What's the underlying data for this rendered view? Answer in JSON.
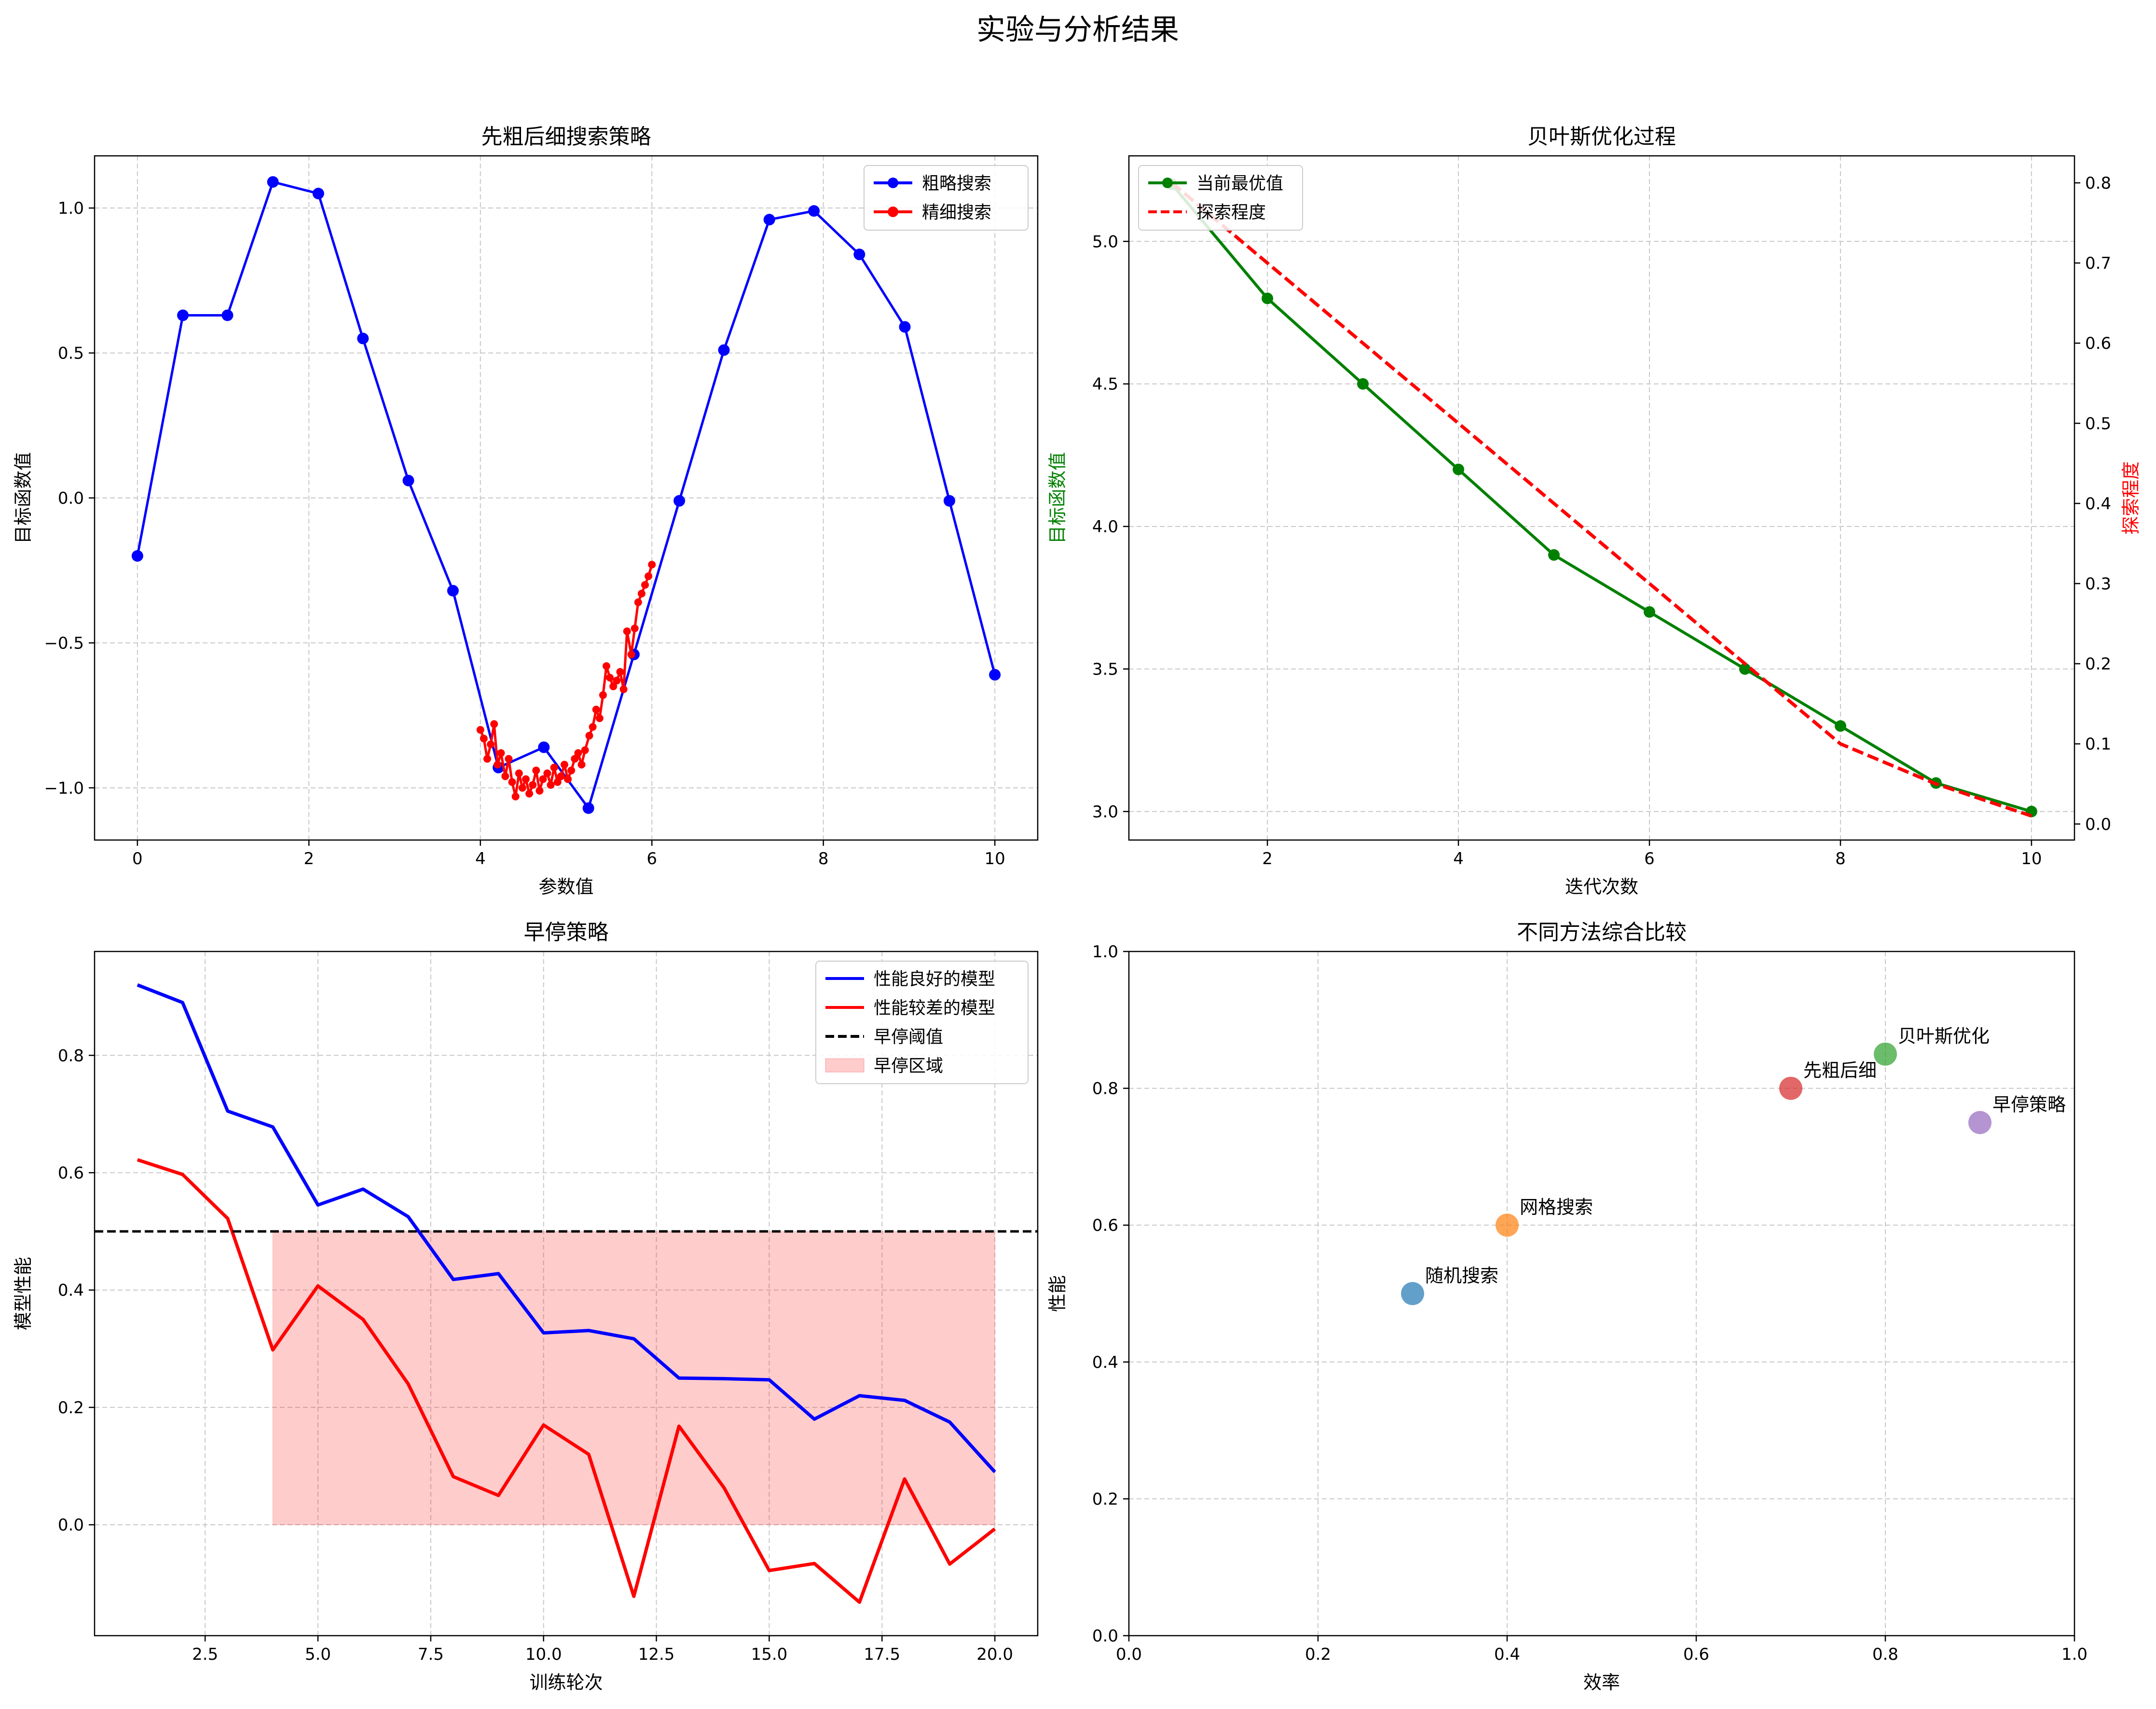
{
  "figure": {
    "title": "实验与分析结果"
  },
  "chart_data": [
    {
      "type": "line",
      "title": "先粗后细搜索策略",
      "xlabel": "参数值",
      "ylabel": "目标函数值",
      "xlim": [
        -0.5,
        10.5
      ],
      "ylim": [
        -1.18,
        1.18
      ],
      "xticks": [
        0,
        2,
        4,
        6,
        8,
        10
      ],
      "xtick_labels": [
        "0",
        "2",
        "4",
        "6",
        "8",
        "10"
      ],
      "yticks": [
        -1.0,
        -0.5,
        0.0,
        0.5,
        1.0
      ],
      "ytick_labels": [
        "−1.0",
        "−0.5",
        "0.0",
        "0.5",
        "1.0"
      ],
      "grid": true,
      "legend_position": "upper right",
      "series": [
        {
          "name": "粗略搜索",
          "color": "#0000ff",
          "marker": "circle",
          "x": [
            0,
            0.53,
            1.05,
            1.58,
            2.11,
            2.63,
            3.16,
            3.68,
            4.21,
            4.74,
            5.26,
            5.79,
            6.32,
            6.84,
            7.37,
            7.89,
            8.42,
            8.95,
            9.47,
            10.0
          ],
          "y": [
            -0.2,
            0.63,
            0.63,
            1.09,
            1.05,
            0.55,
            0.06,
            -0.32,
            -0.93,
            -0.86,
            -1.07,
            -0.54,
            -0.01,
            0.51,
            0.96,
            0.99,
            0.84,
            0.59,
            -0.01,
            -0.61
          ]
        },
        {
          "name": "精细搜索",
          "color": "#ff0000",
          "marker": "circle",
          "x": [
            4.0,
            4.04,
            4.08,
            4.12,
            4.16,
            4.2,
            4.24,
            4.29,
            4.33,
            4.37,
            4.41,
            4.45,
            4.49,
            4.53,
            4.57,
            4.61,
            4.65,
            4.69,
            4.73,
            4.78,
            4.82,
            4.86,
            4.9,
            4.94,
            4.98,
            5.02,
            5.06,
            5.1,
            5.14,
            5.18,
            5.22,
            5.27,
            5.31,
            5.35,
            5.39,
            5.43,
            5.47,
            5.51,
            5.55,
            5.59,
            5.63,
            5.67,
            5.71,
            5.76,
            5.8,
            5.84,
            5.88,
            5.92,
            5.96,
            6.0
          ],
          "y": [
            -0.8,
            -0.83,
            -0.9,
            -0.85,
            -0.78,
            -0.92,
            -0.88,
            -0.96,
            -0.9,
            -0.98,
            -1.03,
            -0.95,
            -1.0,
            -0.97,
            -1.02,
            -0.99,
            -0.94,
            -1.01,
            -0.97,
            -0.95,
            -0.99,
            -0.93,
            -0.98,
            -0.96,
            -0.92,
            -0.97,
            -0.94,
            -0.9,
            -0.88,
            -0.92,
            -0.87,
            -0.82,
            -0.79,
            -0.73,
            -0.76,
            -0.68,
            -0.58,
            -0.62,
            -0.65,
            -0.63,
            -0.6,
            -0.66,
            -0.46,
            -0.54,
            -0.45,
            -0.36,
            -0.33,
            -0.3,
            -0.27,
            -0.23
          ]
        }
      ]
    },
    {
      "type": "line",
      "title": "贝叶斯优化过程",
      "xlabel": "迭代次数",
      "ylabel": "目标函数值",
      "ylabel_color": "#008000",
      "y2label": "探索程度",
      "y2label_color": "#ff0000",
      "xlim": [
        0.55,
        10.45
      ],
      "ylim": [
        2.9,
        5.3
      ],
      "y2lim": [
        -0.02,
        0.8337
      ],
      "xticks": [
        2,
        4,
        6,
        8,
        10
      ],
      "xtick_labels": [
        "2",
        "4",
        "6",
        "8",
        "10"
      ],
      "yticks": [
        3.0,
        3.5,
        4.0,
        4.5,
        5.0
      ],
      "ytick_labels": [
        "3.0",
        "3.5",
        "4.0",
        "4.5",
        "5.0"
      ],
      "y2ticks": [
        0.0,
        0.1,
        0.2,
        0.3,
        0.4,
        0.5,
        0.6,
        0.7,
        0.8
      ],
      "y2tick_labels": [
        "0.0",
        "0.1",
        "0.2",
        "0.3",
        "0.4",
        "0.5",
        "0.6",
        "0.7",
        "0.8"
      ],
      "grid": true,
      "legend_position": "upper left",
      "series": [
        {
          "name": "当前最优值",
          "color": "#008000",
          "marker": "circle",
          "axis": "left",
          "x": [
            1,
            2,
            3,
            4,
            5,
            6,
            7,
            8,
            9,
            10
          ],
          "y": [
            5.2,
            4.8,
            4.5,
            4.2,
            3.9,
            3.7,
            3.5,
            3.3,
            3.1,
            3.0
          ]
        },
        {
          "name": "探索程度",
          "color": "#ff0000",
          "dash": "dashed",
          "axis": "right",
          "x": [
            1,
            2,
            3,
            4,
            5,
            6,
            7,
            8,
            9,
            10
          ],
          "y": [
            0.8,
            0.7,
            0.6,
            0.5,
            0.4,
            0.3,
            0.2,
            0.1,
            0.05,
            0.01
          ]
        }
      ]
    },
    {
      "type": "line",
      "title": "早停策略",
      "xlabel": "训练轮次",
      "ylabel": "模型性能",
      "xlim": [
        0.05,
        20.95
      ],
      "ylim": [
        -0.189,
        0.977
      ],
      "xticks": [
        2.5,
        5.0,
        7.5,
        10.0,
        12.5,
        15.0,
        17.5,
        20.0
      ],
      "xtick_labels": [
        "2.5",
        "5.0",
        "7.5",
        "10.0",
        "12.5",
        "15.0",
        "17.5",
        "20.0"
      ],
      "yticks": [
        0.0,
        0.2,
        0.4,
        0.6,
        0.8
      ],
      "ytick_labels": [
        "0.0",
        "0.2",
        "0.4",
        "0.6",
        "0.8"
      ],
      "grid": true,
      "legend_position": "upper right",
      "series": [
        {
          "name": "性能良好的模型",
          "color": "#0000ff",
          "x": [
            1,
            2,
            3,
            4,
            5,
            6,
            7,
            8,
            9,
            10,
            11,
            12,
            13,
            14,
            15,
            16,
            17,
            18,
            19,
            20
          ],
          "y": [
            0.92,
            0.89,
            0.705,
            0.678,
            0.545,
            0.572,
            0.525,
            0.418,
            0.428,
            0.327,
            0.331,
            0.317,
            0.25,
            0.249,
            0.247,
            0.18,
            0.22,
            0.212,
            0.175,
            0.09
          ]
        },
        {
          "name": "性能较差的模型",
          "color": "#ff0000",
          "x": [
            1,
            2,
            3,
            4,
            5,
            6,
            7,
            8,
            9,
            10,
            11,
            12,
            13,
            14,
            15,
            16,
            17,
            18,
            19,
            20
          ],
          "y": [
            0.622,
            0.597,
            0.522,
            0.298,
            0.407,
            0.35,
            0.24,
            0.082,
            0.05,
            0.17,
            0.12,
            -0.122,
            0.168,
            0.063,
            -0.078,
            -0.066,
            -0.132,
            0.078,
            -0.067,
            -0.007
          ]
        },
        {
          "name": "早停阈值",
          "color": "#000000",
          "dash": "dashed",
          "type": "hline",
          "y": 0.5
        },
        {
          "name": "早停区域",
          "color": "#ff0000",
          "type": "fill",
          "x_range": [
            4,
            20
          ],
          "y_range": [
            0,
            0.5
          ]
        }
      ]
    },
    {
      "type": "scatter",
      "title": "不同方法综合比较",
      "xlabel": "效率",
      "ylabel": "性能",
      "xlim": [
        0.0,
        1.0
      ],
      "ylim": [
        0.0,
        1.0
      ],
      "xticks": [
        0.0,
        0.2,
        0.4,
        0.6,
        0.8,
        1.0
      ],
      "xtick_labels": [
        "0.0",
        "0.2",
        "0.4",
        "0.6",
        "0.8",
        "1.0"
      ],
      "yticks": [
        0.0,
        0.2,
        0.4,
        0.6,
        0.8,
        1.0
      ],
      "ytick_labels": [
        "0.0",
        "0.2",
        "0.4",
        "0.6",
        "0.8",
        "1.0"
      ],
      "grid": true,
      "points": [
        {
          "label": "随机搜索",
          "x": 0.3,
          "y": 0.5,
          "color": "#1f77b4"
        },
        {
          "label": "网格搜索",
          "x": 0.4,
          "y": 0.6,
          "color": "#ff7f0e"
        },
        {
          "label": "贝叶斯优化",
          "x": 0.8,
          "y": 0.85,
          "color": "#2ca02c"
        },
        {
          "label": "先粗后细",
          "x": 0.7,
          "y": 0.8,
          "color": "#d62728"
        },
        {
          "label": "早停策略",
          "x": 0.9,
          "y": 0.75,
          "color": "#9467bd"
        }
      ]
    }
  ]
}
